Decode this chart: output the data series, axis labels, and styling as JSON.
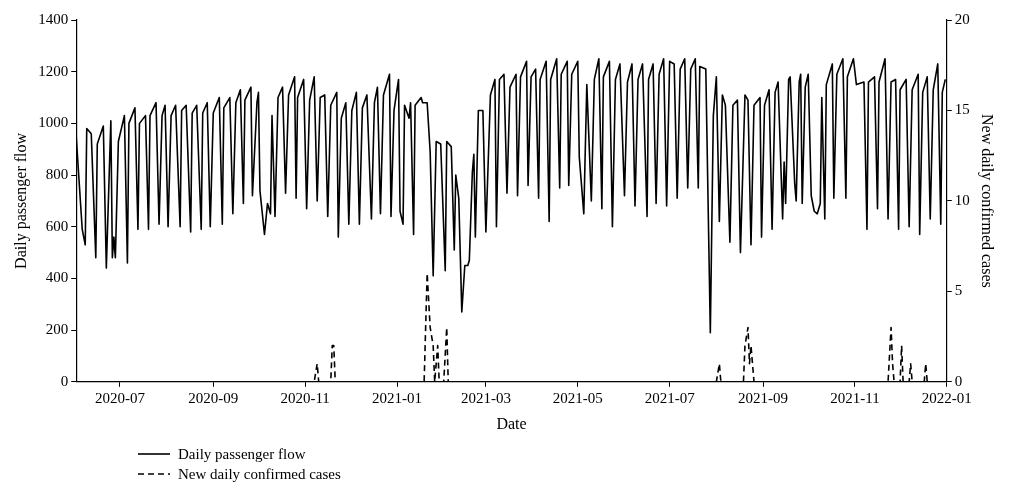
{
  "chart_data": {
    "type": "line",
    "xlabel": "Date",
    "ylabel": "Daily passenger flow",
    "y2label": "New daily confirmed cases",
    "xlim": [
      "2020-06-02",
      "2022-01-01"
    ],
    "xticks": [
      "2020-07",
      "2020-09",
      "2020-11",
      "2021-01",
      "2021-03",
      "2021-05",
      "2021-07",
      "2021-09",
      "2021-11",
      "2022-01"
    ],
    "ylim": [
      0,
      1400
    ],
    "yticks": [
      0,
      200,
      400,
      600,
      800,
      1000,
      1200,
      1400
    ],
    "y2lim": [
      0,
      20
    ],
    "y2ticks": [
      0,
      5,
      10,
      15,
      20
    ],
    "legend": "bottom",
    "marker": "none",
    "series": [
      {
        "name": "Daily passenger flow",
        "color": "#000000",
        "line_style": "solid",
        "x": [
          "2020-06-02",
          "2020-06-06",
          "2020-06-08",
          "2020-06-09",
          "2020-06-12",
          "2020-06-15",
          "2020-06-16",
          "2020-06-20",
          "2020-06-22",
          "2020-06-25",
          "2020-06-26",
          "2020-06-27",
          "2020-06-28",
          "2020-06-30",
          "2020-07-04",
          "2020-07-06",
          "2020-07-07",
          "2020-07-11",
          "2020-07-13",
          "2020-07-14",
          "2020-07-18",
          "2020-07-20",
          "2020-07-21",
          "2020-07-25",
          "2020-07-27",
          "2020-07-29",
          "2020-07-31",
          "2020-08-02",
          "2020-08-04",
          "2020-08-07",
          "2020-08-10",
          "2020-08-11",
          "2020-08-14",
          "2020-08-17",
          "2020-08-18",
          "2020-08-21",
          "2020-08-24",
          "2020-08-25",
          "2020-08-28",
          "2020-08-30",
          "2020-09-01",
          "2020-09-05",
          "2020-09-07",
          "2020-09-08",
          "2020-09-12",
          "2020-09-14",
          "2020-09-16",
          "2020-09-19",
          "2020-09-21",
          "2020-09-22",
          "2020-09-26",
          "2020-09-27",
          "2020-09-30",
          "2020-10-01",
          "2020-10-02",
          "2020-10-05",
          "2020-10-07",
          "2020-10-09",
          "2020-10-10",
          "2020-10-12",
          "2020-10-14",
          "2020-10-17",
          "2020-10-19",
          "2020-10-21",
          "2020-10-25",
          "2020-10-26",
          "2020-10-27",
          "2020-10-31",
          "2020-11-02",
          "2020-11-04",
          "2020-11-07",
          "2020-11-09",
          "2020-11-11",
          "2020-11-14",
          "2020-11-16",
          "2020-11-18",
          "2020-11-22",
          "2020-11-23",
          "2020-11-25",
          "2020-11-28",
          "2020-11-30",
          "2020-12-02",
          "2020-12-05",
          "2020-12-07",
          "2020-12-09",
          "2020-12-12",
          "2020-12-15",
          "2020-12-17",
          "2020-12-19",
          "2020-12-21",
          "2020-12-23",
          "2020-12-27",
          "2020-12-28",
          "2020-12-30",
          "2021-01-02",
          "2021-01-03",
          "2021-01-05",
          "2021-01-06",
          "2021-01-09",
          "2021-01-10",
          "2021-01-12",
          "2021-01-13",
          "2021-01-17",
          "2021-01-18",
          "2021-01-21",
          "2021-01-23",
          "2021-01-25",
          "2021-01-27",
          "2021-01-30",
          "2021-02-02",
          "2021-02-03",
          "2021-02-06",
          "2021-02-08",
          "2021-02-09",
          "2021-02-11",
          "2021-02-13",
          "2021-02-15",
          "2021-02-17",
          "2021-02-18",
          "2021-02-20",
          "2021-02-21",
          "2021-02-22",
          "2021-02-24",
          "2021-02-27",
          "2021-03-01",
          "2021-03-04",
          "2021-03-07",
          "2021-03-08",
          "2021-03-10",
          "2021-03-13",
          "2021-03-15",
          "2021-03-17",
          "2021-03-21",
          "2021-03-22",
          "2021-03-24",
          "2021-03-28",
          "2021-03-29",
          "2021-03-31",
          "2021-04-03",
          "2021-04-05",
          "2021-04-06",
          "2021-04-10",
          "2021-04-12",
          "2021-04-13",
          "2021-04-17",
          "2021-04-19",
          "2021-04-20",
          "2021-04-24",
          "2021-04-25",
          "2021-04-27",
          "2021-05-01",
          "2021-05-02",
          "2021-05-05",
          "2021-05-07",
          "2021-05-10",
          "2021-05-12",
          "2021-05-15",
          "2021-05-17",
          "2021-05-18",
          "2021-05-22",
          "2021-05-24",
          "2021-05-26",
          "2021-05-29",
          "2021-06-01",
          "2021-06-03",
          "2021-06-06",
          "2021-06-08",
          "2021-06-10",
          "2021-06-13",
          "2021-06-16",
          "2021-06-17",
          "2021-06-20",
          "2021-06-22",
          "2021-06-24",
          "2021-06-27",
          "2021-06-29",
          "2021-07-01",
          "2021-07-04",
          "2021-07-06",
          "2021-07-08",
          "2021-07-11",
          "2021-07-13",
          "2021-07-15",
          "2021-07-18",
          "2021-07-20",
          "2021-07-21",
          "2021-07-25",
          "2021-07-28",
          "2021-07-30",
          "2021-08-01",
          "2021-08-03",
          "2021-08-05",
          "2021-08-07",
          "2021-08-10",
          "2021-08-12",
          "2021-08-15",
          "2021-08-17",
          "2021-08-20",
          "2021-08-22",
          "2021-08-24",
          "2021-08-26",
          "2021-08-30",
          "2021-08-31",
          "2021-09-02",
          "2021-09-05",
          "2021-09-07",
          "2021-09-09",
          "2021-09-11",
          "2021-09-14",
          "2021-09-15",
          "2021-09-16",
          "2021-09-18",
          "2021-09-19",
          "2021-09-22",
          "2021-09-23",
          "2021-09-25",
          "2021-09-26",
          "2021-09-27",
          "2021-09-29",
          "2021-10-01",
          "2021-10-03",
          "2021-10-05",
          "2021-10-07",
          "2021-10-09",
          "2021-10-10",
          "2021-10-12",
          "2021-10-13",
          "2021-10-17",
          "2021-10-18",
          "2021-10-20",
          "2021-10-24",
          "2021-10-26",
          "2021-10-27",
          "2021-10-31",
          "2021-11-02",
          "2021-11-07",
          "2021-11-09",
          "2021-11-10",
          "2021-11-14",
          "2021-11-16",
          "2021-11-17",
          "2021-11-21",
          "2021-11-23",
          "2021-11-25",
          "2021-11-28",
          "2021-11-30",
          "2021-12-01",
          "2021-12-05",
          "2021-12-07",
          "2021-12-09",
          "2021-12-13",
          "2021-12-14",
          "2021-12-16",
          "2021-12-19",
          "2021-12-21",
          "2021-12-23",
          "2021-12-26",
          "2021-12-28",
          "2021-12-29",
          "2021-12-31"
        ],
        "values": [
          950,
          590,
          530,
          980,
          960,
          480,
          920,
          990,
          440,
          1010,
          480,
          560,
          480,
          930,
          1030,
          460,
          1000,
          1060,
          590,
          1000,
          1030,
          590,
          1030,
          1080,
          610,
          1030,
          1070,
          600,
          1030,
          1070,
          600,
          1050,
          1070,
          580,
          1040,
          1070,
          590,
          1040,
          1080,
          600,
          1040,
          1100,
          610,
          1060,
          1100,
          650,
          1080,
          1130,
          690,
          1090,
          1140,
          720,
          1080,
          1120,
          740,
          570,
          690,
          650,
          1030,
          640,
          1100,
          1140,
          730,
          1110,
          1180,
          710,
          1100,
          1170,
          670,
          1090,
          1180,
          700,
          1100,
          1110,
          640,
          1070,
          1120,
          560,
          1020,
          1080,
          610,
          1050,
          1120,
          610,
          1060,
          1110,
          630,
          1080,
          1140,
          650,
          1110,
          1190,
          640,
          1050,
          1170,
          660,
          610,
          1070,
          1020,
          1080,
          570,
          1070,
          1100,
          1080,
          1080,
          890,
          410,
          930,
          920,
          430,
          930,
          910,
          510,
          800,
          710,
          270,
          450,
          450,
          470,
          810,
          880,
          560,
          1050,
          1050,
          580,
          1110,
          1170,
          600,
          1170,
          1190,
          730,
          1140,
          1190,
          720,
          1180,
          1240,
          760,
          1180,
          1210,
          710,
          1170,
          1240,
          620,
          1170,
          1250,
          750,
          1190,
          1240,
          760,
          1190,
          1240,
          870,
          650,
          1150,
          700,
          1170,
          1250,
          670,
          1180,
          1240,
          600,
          1170,
          1230,
          720,
          1160,
          1230,
          680,
          1170,
          1230,
          640,
          1170,
          1230,
          690,
          1190,
          1250,
          680,
          1240,
          1230,
          710,
          1210,
          1250,
          750,
          1210,
          1250,
          750,
          1220,
          1210,
          190,
          1030,
          1180,
          620,
          1110,
          1070,
          540,
          1070,
          1090,
          500,
          1110,
          1090,
          530,
          1070,
          1100,
          560,
          1070,
          1130,
          590,
          1120,
          1160,
          630,
          850,
          690,
          1170,
          1180,
          770,
          700,
          1160,
          1190,
          690,
          1140,
          1190,
          720,
          660,
          650,
          690,
          1100,
          630,
          1150,
          1230,
          710,
          1190,
          1250,
          710,
          1180,
          1250,
          1150,
          1160,
          590,
          1160,
          1180,
          670,
          1160,
          1250,
          630,
          1160,
          1170,
          590,
          1130,
          1170,
          600,
          1130,
          1190,
          570,
          1120,
          1180,
          630,
          1130,
          1230,
          610,
          1120,
          1170
        ]
      },
      {
        "name": "New daily confirmed cases",
        "color": "#000000",
        "line_style": "dashed",
        "axis": "y2",
        "x": [
          "2020-06-02",
          "2020-11-07",
          "2020-11-09",
          "2020-11-10",
          "2020-11-18",
          "2020-11-19",
          "2020-11-20",
          "2020-11-21",
          "2021-01-19",
          "2021-01-21",
          "2021-01-23",
          "2021-01-25",
          "2021-01-26",
          "2021-01-28",
          "2021-01-29",
          "2021-02-01",
          "2021-02-03",
          "2021-02-04",
          "2021-08-01",
          "2021-08-03",
          "2021-08-04",
          "2021-08-19",
          "2021-08-20",
          "2021-08-22",
          "2021-08-23",
          "2021-08-24",
          "2021-08-25",
          "2021-08-26",
          "2021-11-23",
          "2021-11-25",
          "2021-11-26",
          "2021-11-27",
          "2021-12-01",
          "2021-12-02",
          "2021-12-03",
          "2021-12-07",
          "2021-12-08",
          "2021-12-09",
          "2021-12-17",
          "2021-12-18",
          "2021-12-19",
          "2021-12-31"
        ],
        "values": [
          0,
          0,
          1,
          0,
          0,
          2,
          2,
          0,
          0,
          6,
          3,
          2,
          0,
          2,
          0,
          0,
          3,
          0,
          0,
          1,
          0,
          0,
          2,
          3,
          1,
          2,
          1,
          0,
          0,
          3,
          1,
          0,
          0,
          2,
          0,
          0,
          1,
          0,
          0,
          1,
          0,
          0
        ]
      }
    ]
  }
}
